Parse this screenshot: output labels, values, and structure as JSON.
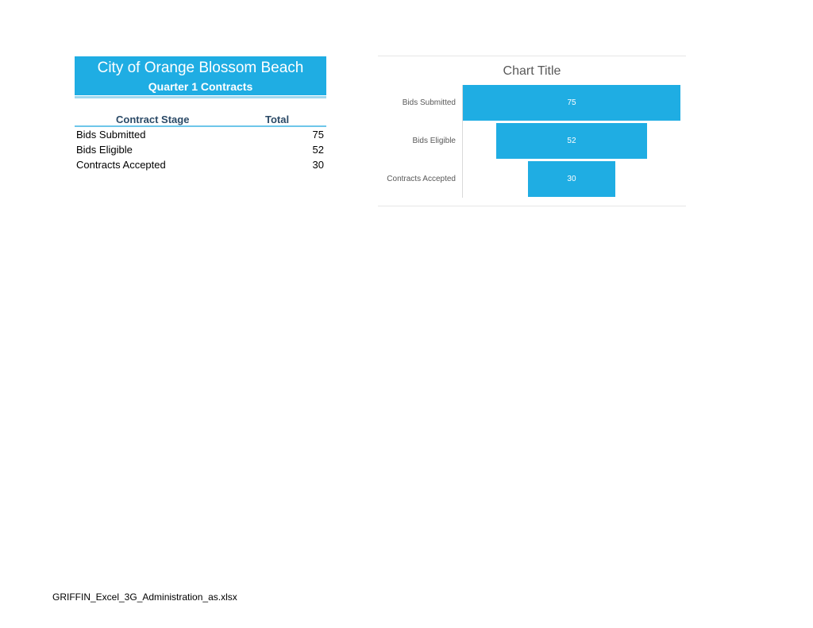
{
  "table": {
    "title": "City of Orange Blossom Beach",
    "subtitle": "Quarter 1 Contracts",
    "headers": {
      "stage": "Contract Stage",
      "total": "Total"
    },
    "rows": [
      {
        "label": "Bids Submitted",
        "value": "75"
      },
      {
        "label": "Bids Eligible",
        "value": "52"
      },
      {
        "label": "Contracts Accepted",
        "value": "30"
      }
    ]
  },
  "chart_data": {
    "type": "funnel",
    "title": "Chart Title",
    "categories": [
      "Bids Submitted",
      "Bids Eligible",
      "Contracts Accepted"
    ],
    "values": [
      75,
      52,
      30
    ],
    "data_labels": [
      "75",
      "52",
      "30"
    ],
    "color": "#1fade3",
    "grid": false,
    "legend": "none"
  },
  "colors": {
    "accent": "#1fade3",
    "header_text": "#2b4a67"
  },
  "footer": {
    "filename": "GRIFFIN_Excel_3G_Administration_as.xlsx"
  }
}
